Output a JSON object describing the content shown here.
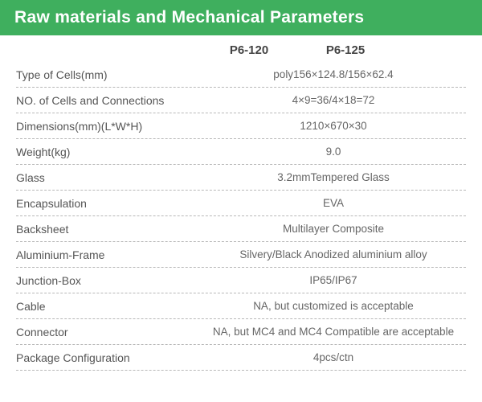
{
  "title": "Raw materials and Mechanical Parameters",
  "title_bg": "#3FAF5E",
  "title_fg": "#ffffff",
  "header": {
    "col1": "P6-120",
    "col2": "P6-125"
  },
  "rows": [
    {
      "label": "Type of Cells(mm)",
      "value": "poly156×124.8/156×62.4"
    },
    {
      "label": "NO. of Cells and Connections",
      "value": "4×9=36/4×18=72"
    },
    {
      "label": "Dimensions(mm)(L*W*H)",
      "value": "1210×670×30"
    },
    {
      "label": "Weight(kg)",
      "value": "9.0"
    },
    {
      "label": "Glass",
      "value": "3.2mmTempered Glass"
    },
    {
      "label": "Encapsulation",
      "value": "EVA"
    },
    {
      "label": "Backsheet",
      "value": "Multilayer Composite"
    },
    {
      "label": "Aluminium-Frame",
      "value": "Silvery/Black Anodized aluminium alloy"
    },
    {
      "label": "Junction-Box",
      "value": "IP65/IP67"
    },
    {
      "label": "Cable",
      "value": "NA, but customized is acceptable"
    },
    {
      "label": "Connector",
      "value": "NA, but MC4 and MC4 Compatible are acceptable"
    },
    {
      "label": "Package Configuration",
      "value": "4pcs/ctn"
    }
  ],
  "colors": {
    "label_text": "#555555",
    "value_text": "#666666",
    "header_text": "#444444",
    "divider": "#b8b8b8",
    "background": "#ffffff"
  }
}
